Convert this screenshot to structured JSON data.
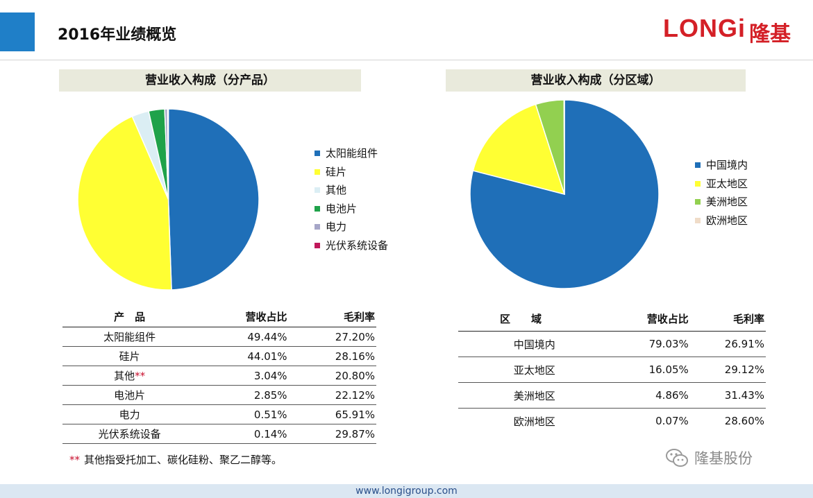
{
  "header": {
    "title": "2016年业绩概览",
    "logo_text": "LONGi",
    "logo_cn": "隆基",
    "accent_color": "#1f7fc8",
    "brand_color": "#d42027"
  },
  "left_section": {
    "header": "营业收入构成（分产品）",
    "table": {
      "columns": [
        "产　品",
        "营收占比",
        "毛利率"
      ],
      "rows": [
        {
          "name": "太阳能组件",
          "share": "49.44%",
          "margin": "27.20%"
        },
        {
          "name": "硅片",
          "share": "44.01%",
          "margin": "28.16%"
        },
        {
          "name": "其他",
          "name_suffix": "**",
          "share": "3.04%",
          "margin": "20.80%"
        },
        {
          "name": "电池片",
          "share": "2.85%",
          "margin": "22.12%"
        },
        {
          "name": "电力",
          "share": "0.51%",
          "margin": "65.91%"
        },
        {
          "name": "光伏系统设备",
          "share": "0.14%",
          "margin": "29.87%"
        }
      ]
    }
  },
  "right_section": {
    "header": "营业收入构成（分区域）",
    "table": {
      "columns": [
        "区　　域",
        "营收占比",
        "毛利率"
      ],
      "rows": [
        {
          "name": "中国境内",
          "share": "79.03%",
          "margin": "26.91%"
        },
        {
          "name": "亚太地区",
          "share": "16.05%",
          "margin": "29.12%"
        },
        {
          "name": "美洲地区",
          "share": "4.86%",
          "margin": "31.43%"
        },
        {
          "name": "欧洲地区",
          "share": "0.07%",
          "margin": "28.60%"
        }
      ]
    }
  },
  "chart_data": [
    {
      "type": "pie",
      "title": "",
      "labels": [
        "太阳能组件",
        "硅片",
        "其他",
        "电池片",
        "电力",
        "光伏系统设备"
      ],
      "values": [
        49.44,
        44.01,
        3.04,
        2.85,
        0.51,
        0.14
      ],
      "colors": [
        "#1f6fb8",
        "#ffff33",
        "#dbeef4",
        "#1fa24a",
        "#a6a6c8",
        "#c0185a"
      ],
      "legend": "right"
    },
    {
      "type": "pie",
      "title": "",
      "labels": [
        "中国境内",
        "亚太地区",
        "美洲地区",
        "欧洲地区"
      ],
      "values": [
        79.03,
        16.05,
        4.86,
        0.07
      ],
      "colors": [
        "#1f6fb8",
        "#ffff33",
        "#92d050",
        "#f0dcc8"
      ],
      "legend": "right"
    }
  ],
  "footnote": {
    "stars": "**",
    "text": "其他指受托加工、碳化硅粉、聚乙二醇等。"
  },
  "wechat": {
    "account_name": "隆基股份"
  },
  "footer": {
    "url": "www.longigroup.com"
  }
}
